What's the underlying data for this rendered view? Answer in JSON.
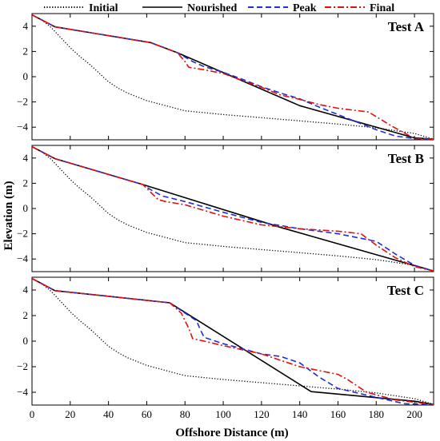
{
  "chart_data": {
    "type": "line",
    "xlabel": "Offshore Distance (m)",
    "ylabel": "Elevation (m)",
    "xlim": [
      0,
      210
    ],
    "ylim": [
      -5,
      5
    ],
    "x_ticks": [
      0,
      20,
      40,
      60,
      80,
      100,
      120,
      140,
      160,
      180,
      200
    ],
    "y_ticks": [
      4,
      2,
      0,
      -2,
      -4
    ],
    "legend": {
      "placement": "top",
      "entries": [
        {
          "name": "Initial",
          "color": "#000000",
          "dash": "dotted"
        },
        {
          "name": "Nourished",
          "color": "#000000",
          "dash": "solid"
        },
        {
          "name": "Peak",
          "color": "#1f2fd6",
          "dash": "dashed"
        },
        {
          "name": "Final",
          "color": "#e01010",
          "dash": "dashdot"
        }
      ]
    },
    "panels": [
      {
        "title": "Test A",
        "series": [
          {
            "name": "Initial",
            "points": [
              [
                0,
                4.9
              ],
              [
                5,
                4.5
              ],
              [
                10,
                3.9
              ],
              [
                15,
                3.1
              ],
              [
                20,
                2.3
              ],
              [
                25,
                1.6
              ],
              [
                30,
                1.0
              ],
              [
                35,
                0.3
              ],
              [
                40,
                -0.4
              ],
              [
                45,
                -0.9
              ],
              [
                50,
                -1.3
              ],
              [
                55,
                -1.6
              ],
              [
                60,
                -1.9
              ],
              [
                65,
                -2.1
              ],
              [
                70,
                -2.3
              ],
              [
                75,
                -2.5
              ],
              [
                80,
                -2.7
              ],
              [
                90,
                -2.85
              ],
              [
                100,
                -3.0
              ],
              [
                120,
                -3.25
              ],
              [
                140,
                -3.5
              ],
              [
                160,
                -3.75
              ],
              [
                180,
                -4.05
              ],
              [
                200,
                -4.5
              ],
              [
                210,
                -4.95
              ]
            ]
          },
          {
            "name": "Nourished",
            "points": [
              [
                0,
                4.9
              ],
              [
                12,
                3.95
              ],
              [
                62,
                2.7
              ],
              [
                76,
                1.9
              ],
              [
                140,
                -2.3
              ],
              [
                200,
                -4.85
              ],
              [
                210,
                -4.95
              ]
            ]
          },
          {
            "name": "Peak",
            "points": [
              [
                0,
                4.9
              ],
              [
                12,
                3.95
              ],
              [
                62,
                2.7
              ],
              [
                76,
                1.9
              ],
              [
                84,
                1.2
              ],
              [
                90,
                0.8
              ],
              [
                100,
                0.35
              ],
              [
                110,
                -0.2
              ],
              [
                120,
                -0.8
              ],
              [
                130,
                -1.3
              ],
              [
                140,
                -1.75
              ],
              [
                150,
                -2.4
              ],
              [
                160,
                -3.0
              ],
              [
                170,
                -3.6
              ],
              [
                180,
                -4.2
              ],
              [
                190,
                -4.7
              ],
              [
                200,
                -4.9
              ],
              [
                210,
                -4.95
              ]
            ]
          },
          {
            "name": "Final",
            "points": [
              [
                0,
                4.9
              ],
              [
                12,
                3.95
              ],
              [
                62,
                2.7
              ],
              [
                76,
                1.9
              ],
              [
                80,
                1.2
              ],
              [
                82,
                0.75
              ],
              [
                90,
                0.55
              ],
              [
                100,
                0.25
              ],
              [
                110,
                -0.3
              ],
              [
                120,
                -0.85
              ],
              [
                130,
                -1.45
              ],
              [
                140,
                -1.8
              ],
              [
                150,
                -2.2
              ],
              [
                160,
                -2.5
              ],
              [
                176,
                -2.8
              ],
              [
                188,
                -3.9
              ],
              [
                200,
                -4.9
              ],
              [
                210,
                -4.95
              ]
            ]
          }
        ]
      },
      {
        "title": "Test B",
        "series": [
          {
            "name": "Initial",
            "points": [
              [
                0,
                4.9
              ],
              [
                5,
                4.5
              ],
              [
                10,
                3.9
              ],
              [
                15,
                3.1
              ],
              [
                20,
                2.3
              ],
              [
                25,
                1.6
              ],
              [
                30,
                1.0
              ],
              [
                35,
                0.3
              ],
              [
                40,
                -0.4
              ],
              [
                45,
                -0.9
              ],
              [
                50,
                -1.3
              ],
              [
                55,
                -1.6
              ],
              [
                60,
                -1.9
              ],
              [
                65,
                -2.1
              ],
              [
                70,
                -2.3
              ],
              [
                75,
                -2.5
              ],
              [
                80,
                -2.7
              ],
              [
                90,
                -2.85
              ],
              [
                100,
                -3.0
              ],
              [
                120,
                -3.25
              ],
              [
                140,
                -3.5
              ],
              [
                160,
                -3.75
              ],
              [
                180,
                -4.05
              ],
              [
                200,
                -4.5
              ],
              [
                210,
                -4.95
              ]
            ]
          },
          {
            "name": "Nourished",
            "points": [
              [
                0,
                4.9
              ],
              [
                12,
                3.95
              ],
              [
                58,
                1.9
              ],
              [
                130,
                -1.5
              ],
              [
                210,
                -4.95
              ]
            ]
          },
          {
            "name": "Peak",
            "points": [
              [
                0,
                4.9
              ],
              [
                12,
                3.95
              ],
              [
                58,
                1.9
              ],
              [
                62,
                1.5
              ],
              [
                68,
                1.0
              ],
              [
                80,
                0.55
              ],
              [
                100,
                -0.3
              ],
              [
                120,
                -1.1
              ],
              [
                140,
                -1.6
              ],
              [
                160,
                -2.0
              ],
              [
                180,
                -2.6
              ],
              [
                190,
                -3.6
              ],
              [
                200,
                -4.5
              ],
              [
                210,
                -4.95
              ]
            ]
          },
          {
            "name": "Final",
            "points": [
              [
                0,
                4.9
              ],
              [
                12,
                3.95
              ],
              [
                58,
                1.9
              ],
              [
                62,
                1.3
              ],
              [
                66,
                0.7
              ],
              [
                70,
                0.55
              ],
              [
                80,
                0.3
              ],
              [
                100,
                -0.6
              ],
              [
                120,
                -1.3
              ],
              [
                140,
                -1.6
              ],
              [
                160,
                -1.8
              ],
              [
                172,
                -2.0
              ],
              [
                180,
                -2.9
              ],
              [
                190,
                -3.9
              ],
              [
                200,
                -4.6
              ],
              [
                210,
                -4.95
              ]
            ]
          }
        ]
      },
      {
        "title": "Test C",
        "series": [
          {
            "name": "Initial",
            "points": [
              [
                0,
                4.9
              ],
              [
                5,
                4.5
              ],
              [
                10,
                3.9
              ],
              [
                15,
                3.1
              ],
              [
                20,
                2.3
              ],
              [
                25,
                1.6
              ],
              [
                30,
                1.0
              ],
              [
                35,
                0.3
              ],
              [
                40,
                -0.4
              ],
              [
                45,
                -0.9
              ],
              [
                50,
                -1.3
              ],
              [
                55,
                -1.6
              ],
              [
                60,
                -1.9
              ],
              [
                65,
                -2.1
              ],
              [
                70,
                -2.3
              ],
              [
                75,
                -2.5
              ],
              [
                80,
                -2.7
              ],
              [
                90,
                -2.85
              ],
              [
                100,
                -3.0
              ],
              [
                120,
                -3.25
              ],
              [
                140,
                -3.5
              ],
              [
                160,
                -3.75
              ],
              [
                180,
                -4.05
              ],
              [
                200,
                -4.5
              ],
              [
                210,
                -4.95
              ]
            ]
          },
          {
            "name": "Nourished",
            "points": [
              [
                0,
                4.9
              ],
              [
                12,
                3.95
              ],
              [
                72,
                3.0
              ],
              [
                146,
                -3.95
              ],
              [
                200,
                -4.7
              ],
              [
                210,
                -4.95
              ]
            ]
          },
          {
            "name": "Peak",
            "points": [
              [
                0,
                4.9
              ],
              [
                12,
                3.95
              ],
              [
                72,
                3.0
              ],
              [
                80,
                2.2
              ],
              [
                86,
                1.6
              ],
              [
                88,
                0.9
              ],
              [
                90,
                0.3
              ],
              [
                100,
                -0.2
              ],
              [
                110,
                -0.6
              ],
              [
                120,
                -1.0
              ],
              [
                130,
                -1.2
              ],
              [
                140,
                -1.7
              ],
              [
                150,
                -2.8
              ],
              [
                160,
                -3.7
              ],
              [
                180,
                -4.4
              ],
              [
                195,
                -4.9
              ],
              [
                210,
                -4.95
              ]
            ]
          },
          {
            "name": "Final",
            "points": [
              [
                0,
                4.9
              ],
              [
                12,
                3.95
              ],
              [
                72,
                3.0
              ],
              [
                78,
                2.2
              ],
              [
                82,
                1.0
              ],
              [
                84,
                0.2
              ],
              [
                90,
                0.0
              ],
              [
                100,
                -0.35
              ],
              [
                120,
                -1.0
              ],
              [
                140,
                -2.0
              ],
              [
                160,
                -2.6
              ],
              [
                165,
                -3.0
              ],
              [
                175,
                -4.0
              ],
              [
                190,
                -4.6
              ],
              [
                210,
                -4.95
              ]
            ]
          }
        ]
      }
    ]
  }
}
